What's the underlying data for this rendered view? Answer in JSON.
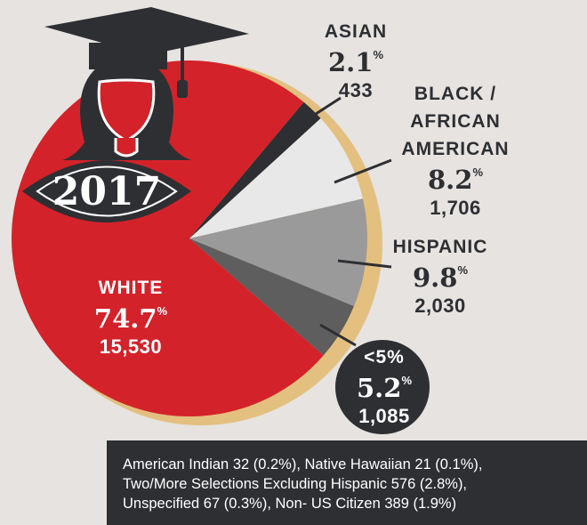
{
  "chart_data": {
    "type": "pie",
    "annotation": "2017",
    "unit": "%",
    "categories": [
      "ASIAN",
      "BLACK / AFRICAN AMERICAN",
      "HISPANIC",
      "<5%",
      "WHITE"
    ],
    "values": [
      2.1,
      8.2,
      9.8,
      5.2,
      74.7
    ],
    "counts": [
      433,
      {
        "value": 1706,
        "label": "1,706"
      },
      {
        "value": 2030,
        "label": "2,030"
      },
      {
        "value": 1085,
        "label": "1,085"
      },
      {
        "value": 15530,
        "label": "15,530"
      }
    ],
    "colors": [
      "#2e2f33",
      "#e8e8e8",
      "#9a9a9a",
      "#5e5e5e",
      "#d3222a"
    ],
    "note": [
      "American Indian 32 (0.2%), Native Hawaiian 21 (0.1%),",
      "Two/More Selections Excluding Hispanic 576 (2.8%),",
      "Unspecified 67 (0.3%), Non- US Citizen 389 (1.9%)"
    ]
  }
}
